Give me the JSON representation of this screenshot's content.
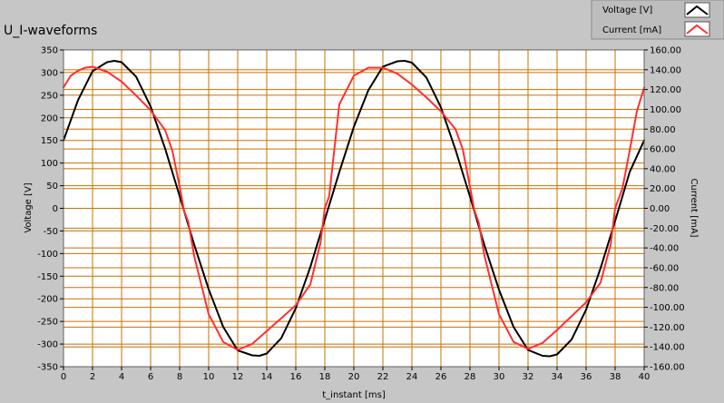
{
  "chart_data": {
    "type": "line",
    "title": "U_I-waveforms",
    "xlabel": "t_instant [ms]",
    "ylabel_left": "Voltage [V]",
    "ylabel_right": "Current [mA]",
    "xlim": [
      0,
      40
    ],
    "ylim_left": [
      -350,
      350
    ],
    "ylim_right": [
      -160,
      160
    ],
    "x_ticks": [
      "0",
      "2",
      "4",
      "6",
      "8",
      "10",
      "12",
      "14",
      "16",
      "18",
      "20",
      "22",
      "24",
      "26",
      "28",
      "30",
      "32",
      "34",
      "36",
      "38",
      "40"
    ],
    "y_left_ticks": [
      "350",
      "300",
      "250",
      "200",
      "150",
      "100",
      "50",
      "0",
      "-50",
      "-100",
      "-150",
      "-200",
      "-250",
      "-300",
      "-350"
    ],
    "y_right_ticks": [
      "160.00",
      "140.00",
      "120.00",
      "100.00",
      "80.00",
      "60.00",
      "40.00",
      "20.00",
      "0.00",
      "-20.00",
      "-40.00",
      "-60.00",
      "-80.00",
      "-100.00",
      "-120.00",
      "-140.00",
      "-160.00"
    ],
    "grid": true,
    "legend_position": "top-right",
    "plot_background": "#ffffff",
    "grid_color": "#c87000",
    "series": [
      {
        "name": "Voltage [V]",
        "axis": "left",
        "color": "#000000",
        "x": [
          0,
          1,
          2,
          3,
          3.5,
          4,
          5,
          6,
          7,
          8,
          9,
          10,
          11,
          12,
          13,
          13.5,
          14,
          15,
          16,
          17,
          18,
          19,
          20,
          21,
          22,
          23,
          23.5,
          24,
          25,
          26,
          27,
          28,
          29,
          30,
          31,
          32,
          33,
          33.5,
          34,
          35,
          36,
          37,
          38,
          39,
          40
        ],
        "values": [
          150,
          239,
          303,
          323,
          326,
          323,
          291,
          225,
          132,
          27,
          -80,
          -179,
          -262,
          -314,
          -325,
          -326,
          -321,
          -287,
          -221,
          -130,
          -25,
          80,
          180,
          261,
          313,
          325,
          326,
          322,
          289,
          223,
          130,
          26,
          -82,
          -180,
          -262,
          -313,
          -326,
          -327,
          -323,
          -290,
          -224,
          -132,
          -28,
          80,
          150
        ]
      },
      {
        "name": "Current [mA]",
        "axis": "right",
        "color": "#ff3030",
        "x": [
          0,
          0.5,
          1,
          1.5,
          2,
          3,
          4,
          5,
          6,
          7,
          7.5,
          8,
          8.3,
          8.6,
          9,
          10,
          11,
          12,
          13,
          14,
          15,
          16,
          17,
          17.7,
          18,
          18.3,
          18.6,
          19,
          20,
          21,
          22,
          23,
          24,
          25,
          26,
          27,
          27.5,
          28,
          28.3,
          28.6,
          29,
          30,
          31,
          32,
          33,
          34,
          35,
          36,
          37,
          37.7,
          38,
          38.5,
          39,
          39.5,
          40
        ],
        "values": [
          122,
          134,
          139,
          142,
          143,
          138,
          128,
          114,
          99,
          79,
          58,
          22,
          -2,
          -14,
          -48,
          -107,
          -135,
          -143,
          -137,
          -124,
          -111,
          -98,
          -77,
          -35,
          0,
          12,
          52,
          105,
          134,
          142,
          142,
          136,
          125,
          112,
          98,
          80,
          60,
          22,
          -2,
          -14,
          -48,
          -107,
          -135,
          -142,
          -136,
          -123,
          -109,
          -95,
          -75,
          -36,
          0,
          20,
          58,
          98,
          122
        ]
      }
    ]
  }
}
